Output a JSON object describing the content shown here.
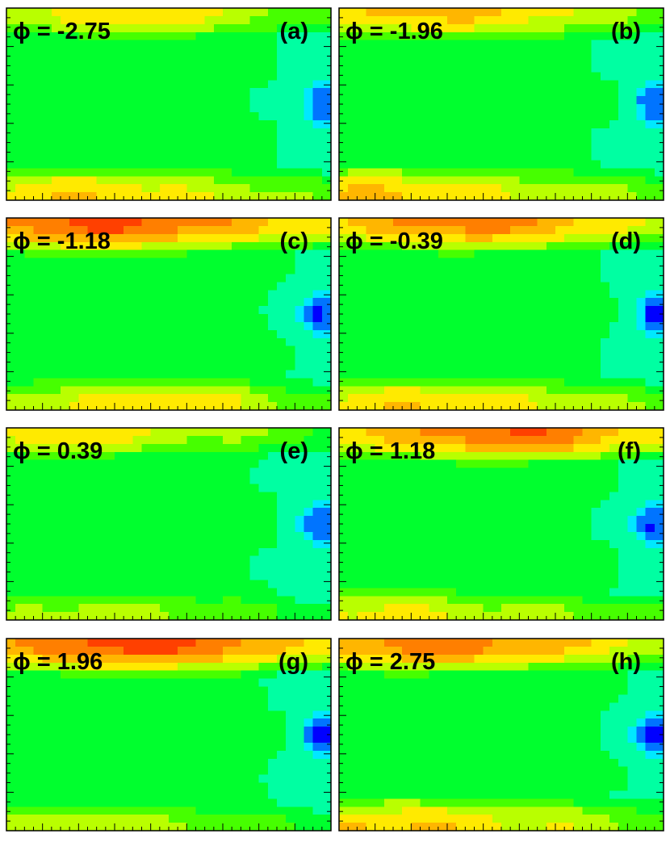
{
  "figure": {
    "colors": {
      "scale": [
        "#0000ff",
        "#00ffff",
        "#00ff00",
        "#ffff00",
        "#ff8c00",
        "#ff0000"
      ],
      "frame": "#000000"
    }
  },
  "chart_data": [
    {
      "id": "a",
      "type": "heatmap",
      "panel_label": "(a)",
      "phi_label": "ϕ = -2.75",
      "phi": -2.75,
      "hot_top": {
        "level": 0.66,
        "center": 0.4
      },
      "hot_bottom": {
        "level": 0.68,
        "center": 0.22
      },
      "cold_spot": {
        "x": 0.97,
        "y": 0.5,
        "level": 0.0
      }
    },
    {
      "id": "b",
      "type": "heatmap",
      "panel_label": "(b)",
      "phi_label": "ϕ = -1.96",
      "phi": -1.96,
      "hot_top": {
        "level": 0.72,
        "center": 0.3
      },
      "hot_bottom": {
        "level": 0.7,
        "center": 0.12
      },
      "cold_spot": {
        "x": 0.97,
        "y": 0.5,
        "level": 0.05
      }
    },
    {
      "id": "c",
      "type": "heatmap",
      "panel_label": "(c)",
      "phi_label": "ϕ = -1.18",
      "phi": -1.18,
      "hot_top": {
        "level": 0.9,
        "center": 0.3
      },
      "hot_bottom": {
        "level": 0.66,
        "center": 0.45
      },
      "cold_spot": {
        "x": 0.97,
        "y": 0.5,
        "level": 0.0
      }
    },
    {
      "id": "d",
      "type": "heatmap",
      "panel_label": "(d)",
      "phi_label": "ϕ = -0.39",
      "phi": -0.39,
      "hot_top": {
        "level": 0.82,
        "center": 0.4
      },
      "hot_bottom": {
        "level": 0.68,
        "center": 0.25
      },
      "cold_spot": {
        "x": 0.97,
        "y": 0.5,
        "level": 0.0
      }
    },
    {
      "id": "e",
      "type": "heatmap",
      "panel_label": "(e)",
      "phi_label": "ϕ =  0.39",
      "phi": 0.39,
      "hot_top": {
        "level": 0.64,
        "center": 0.2
      },
      "hot_bottom": {
        "level": 0.55,
        "center": 0.3
      },
      "cold_spot": {
        "x": 0.97,
        "y": 0.5,
        "level": 0.05
      }
    },
    {
      "id": "f",
      "type": "heatmap",
      "panel_label": "(f)",
      "phi_label": "ϕ =  1.18",
      "phi": 1.18,
      "hot_top": {
        "level": 0.86,
        "center": 0.55
      },
      "hot_bottom": {
        "level": 0.62,
        "center": 0.12
      },
      "cold_spot": {
        "x": 0.97,
        "y": 0.5,
        "level": 0.0
      }
    },
    {
      "id": "g",
      "type": "heatmap",
      "panel_label": "(g)",
      "phi_label": "ϕ =  1.96",
      "phi": 1.96,
      "hot_top": {
        "level": 0.92,
        "center": 0.4
      },
      "hot_bottom": {
        "level": 0.56,
        "center": 0.2
      },
      "cold_spot": {
        "x": 0.97,
        "y": 0.5,
        "level": 0.0
      }
    },
    {
      "id": "h",
      "type": "heatmap",
      "panel_label": "(h)",
      "phi_label": "ϕ =  2.75",
      "phi": 2.75,
      "hot_top": {
        "level": 0.84,
        "center": 0.3
      },
      "hot_bottom": {
        "level": 0.7,
        "center": 0.18
      },
      "cold_spot": {
        "x": 0.97,
        "y": 0.5,
        "level": 0.0
      }
    }
  ]
}
